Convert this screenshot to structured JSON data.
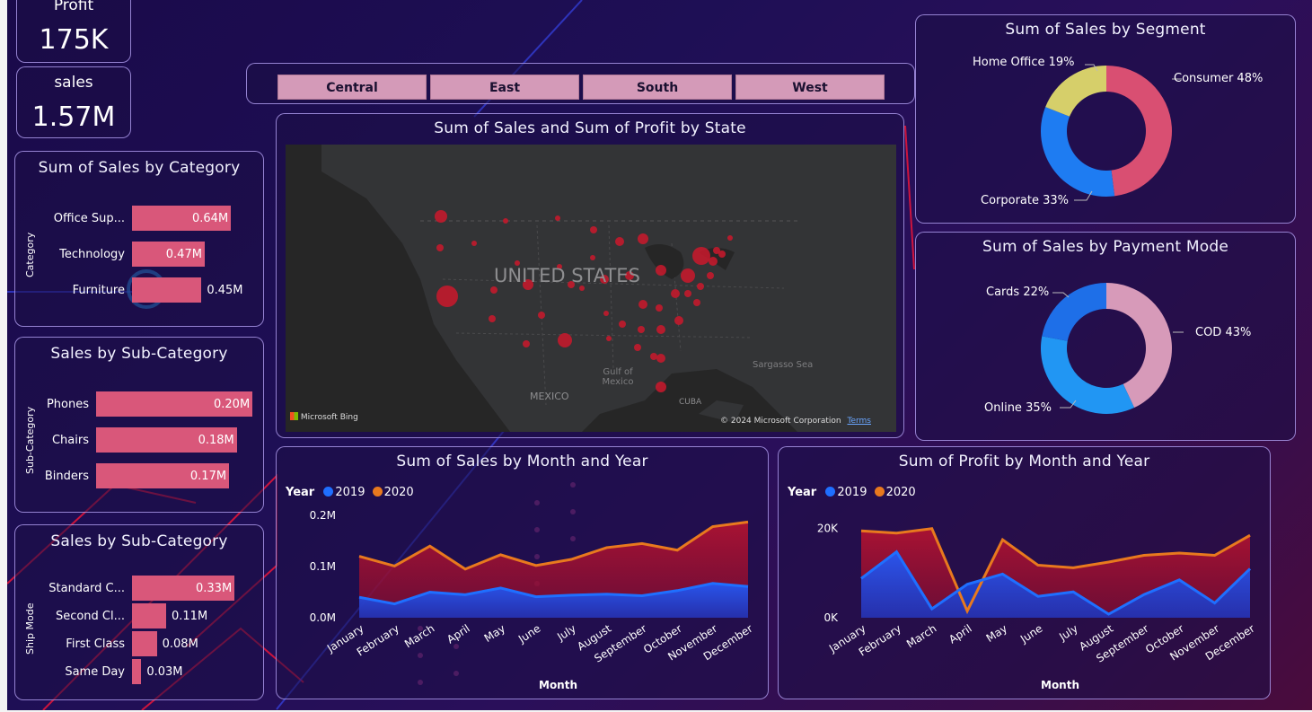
{
  "colors": {
    "accent_bar": "#d9577a",
    "series_2019": "#1f6fff",
    "series_2020": "#e8791e",
    "slicer": "#d49ab8"
  },
  "kpis": {
    "profit": {
      "label": "Profit",
      "value": "175K"
    },
    "sales": {
      "label": "sales",
      "value": "1.57M"
    }
  },
  "slicer": {
    "options": [
      "Central",
      "East",
      "South",
      "West"
    ]
  },
  "category": {
    "title": "Sum of Sales by Category",
    "axis_label": "Category",
    "items": [
      {
        "label": "Office Sup...",
        "value": 0.64,
        "text": "0.64M"
      },
      {
        "label": "Technology",
        "value": 0.47,
        "text": "0.47M"
      },
      {
        "label": "Furniture",
        "value": 0.45,
        "text": "0.45M"
      }
    ]
  },
  "subcategory": {
    "title": "Sales by Sub-Category",
    "axis_label": "Sub-Category",
    "items": [
      {
        "label": "Phones",
        "value": 0.2,
        "text": "0.20M"
      },
      {
        "label": "Chairs",
        "value": 0.18,
        "text": "0.18M"
      },
      {
        "label": "Binders",
        "value": 0.17,
        "text": "0.17M"
      }
    ]
  },
  "shipmode": {
    "title": "Sales by Sub-Category",
    "axis_label": "Ship Mode",
    "items": [
      {
        "label": "Standard C...",
        "value": 0.33,
        "text": "0.33M"
      },
      {
        "label": "Second Cl...",
        "value": 0.11,
        "text": "0.11M"
      },
      {
        "label": "First Class",
        "value": 0.08,
        "text": "0.08M"
      },
      {
        "label": "Same Day",
        "value": 0.03,
        "text": "0.03M"
      }
    ]
  },
  "map": {
    "title": "Sum of Sales and Sum of Profit by State",
    "country_label": "UNITED STATES",
    "mexico_label": "MEXICO",
    "gulf_label": "Gulf of\nMexico",
    "sea_label": "Sargasso Sea",
    "cuba_label": "CUBA",
    "bing_label": "Microsoft Bing",
    "copyright": "© 2024 Microsoft Corporation",
    "terms": "Terms"
  },
  "segment": {
    "title": "Sum of Sales by Segment",
    "slices": [
      {
        "name": "Consumer",
        "pct": 48,
        "label": "Consumer 48%",
        "color": "#d94f72"
      },
      {
        "name": "Corporate",
        "pct": 33,
        "label": "Corporate 33%",
        "color": "#1e7cf2"
      },
      {
        "name": "Home Office",
        "pct": 19,
        "label": "Home Office 19%",
        "color": "#d6cf6a"
      }
    ]
  },
  "payment": {
    "title": "Sum of Sales by Payment Mode",
    "slices": [
      {
        "name": "COD",
        "pct": 43,
        "label": "COD 43%",
        "color": "#d79ab9"
      },
      {
        "name": "Online",
        "pct": 35,
        "label": "Online 35%",
        "color": "#2196f3"
      },
      {
        "name": "Cards",
        "pct": 22,
        "label": "Cards 22%",
        "color": "#1e6fe8"
      }
    ]
  },
  "chart_data": [
    {
      "type": "area",
      "title": "Sum of Sales by Month and Year",
      "xlabel": "Month",
      "legend_title": "Year",
      "categories": [
        "January",
        "February",
        "March",
        "April",
        "May",
        "June",
        "July",
        "August",
        "September",
        "October",
        "November",
        "December"
      ],
      "series": [
        {
          "name": "2019",
          "color": "#1f6fff",
          "values": [
            0.04,
            0.027,
            0.05,
            0.045,
            0.058,
            0.041,
            0.044,
            0.046,
            0.043,
            0.053,
            0.067,
            0.061
          ]
        },
        {
          "name": "2020",
          "color": "#e8791e",
          "values": [
            0.12,
            0.101,
            0.14,
            0.095,
            0.123,
            0.102,
            0.114,
            0.137,
            0.145,
            0.132,
            0.178,
            0.187
          ]
        }
      ],
      "ylim": [
        0,
        0.2
      ],
      "yticks": [
        "0.0M",
        "0.1M",
        "0.2M"
      ]
    },
    {
      "type": "area",
      "title": "Sum of Profit by Month and Year",
      "xlabel": "Month",
      "legend_title": "Year",
      "categories": [
        "January",
        "February",
        "March",
        "April",
        "May",
        "June",
        "July",
        "August",
        "September",
        "October",
        "November",
        "December"
      ],
      "series": [
        {
          "name": "2019",
          "color": "#1f6fff",
          "values": [
            8800,
            14800,
            2000,
            7500,
            9800,
            4800,
            5800,
            800,
            5200,
            8500,
            3300,
            11000
          ]
        },
        {
          "name": "2020",
          "color": "#e8791e",
          "values": [
            19500,
            19000,
            20000,
            1500,
            17500,
            11800,
            11200,
            12500,
            14000,
            14500,
            14000,
            18500
          ]
        }
      ],
      "ylim": [
        0,
        27000
      ],
      "yticks": [
        "0K",
        "20K"
      ]
    }
  ]
}
